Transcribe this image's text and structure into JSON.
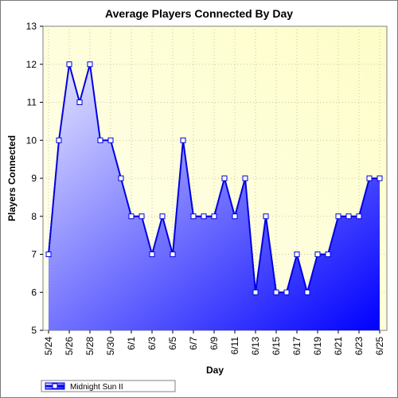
{
  "chart_data": {
    "type": "area",
    "title": "Average Players Connected By Day",
    "xlabel": "Day",
    "ylabel": "Players Connected",
    "ylim": [
      5,
      13
    ],
    "yticks": [
      "5",
      "6",
      "7",
      "8",
      "9",
      "10",
      "11",
      "12",
      "13"
    ],
    "grid": true,
    "legend_position": "bottom-left",
    "x": [
      "5/24",
      "5/25",
      "5/26",
      "5/27",
      "5/28",
      "5/29",
      "5/30",
      "5/31",
      "6/1",
      "6/2",
      "6/3",
      "6/4",
      "6/5",
      "6/6",
      "6/7",
      "6/8",
      "6/9",
      "6/10",
      "6/11",
      "6/12",
      "6/13",
      "6/14",
      "6/15",
      "6/16",
      "6/17",
      "6/18",
      "6/19",
      "6/20",
      "6/21",
      "6/22",
      "6/23",
      "6/24",
      "6/25"
    ],
    "xtick_labels": [
      "5/24",
      "5/26",
      "5/28",
      "5/30",
      "6/1",
      "6/3",
      "6/5",
      "6/7",
      "6/9",
      "6/11",
      "6/13",
      "6/15",
      "6/17",
      "6/19",
      "6/21",
      "6/23",
      "6/25"
    ],
    "series": [
      {
        "name": "Midnight Sun II",
        "values": [
          7,
          10,
          12,
          11,
          12,
          10,
          10,
          9,
          8,
          8,
          7,
          8,
          7,
          10,
          8,
          8,
          8,
          9,
          8,
          9,
          6,
          8,
          6,
          6,
          7,
          6,
          7,
          7,
          8,
          8,
          8,
          9,
          9
        ]
      }
    ],
    "colors": {
      "line": "#0000e0",
      "fill_start": "#e6e6ff",
      "fill_end": "#0000ff",
      "plot_bg_start": "#fffff0",
      "plot_bg_end": "#fdfdc8",
      "grid": "#c8c8a0"
    }
  }
}
